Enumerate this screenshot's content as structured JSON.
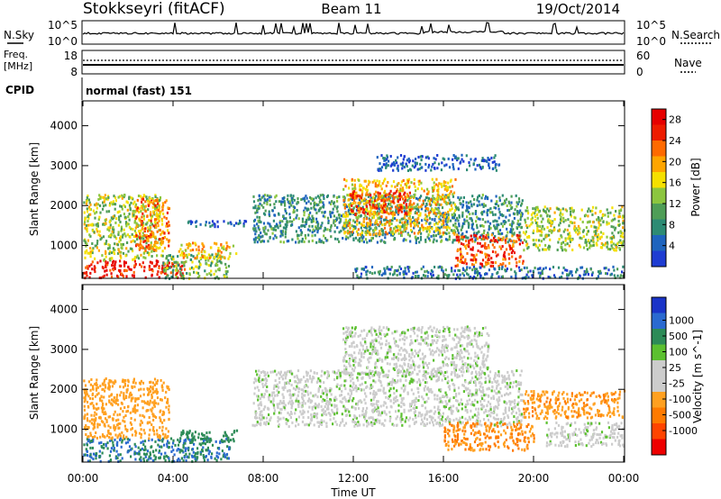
{
  "header": {
    "station": "Stokkseyri (fitACF)",
    "beam": "Beam 11",
    "date": "19/Oct/2014"
  },
  "top_panel": {
    "left_label": "N.Sky",
    "left_ticks": [
      "10^5",
      "10^0"
    ],
    "right_label": "N.Search",
    "right_ticks": [
      "10^5",
      "10^0"
    ]
  },
  "freq_panel": {
    "left_label_1": "Freq.",
    "left_label_2": "[MHz]",
    "left_ticks": [
      "18",
      "8"
    ],
    "right_label": "Nave",
    "right_ticks": [
      "60",
      "0"
    ]
  },
  "cpid_panel": {
    "label": "CPID",
    "mode": "normal (fast) 151"
  },
  "colors": {
    "power_scale": [
      "#1e3cd2",
      "#1e64be",
      "#2d8b74",
      "#4f9e57",
      "#8cc63f",
      "#f5e000",
      "#ffa500",
      "#ff6a00",
      "#ee1c00",
      "#e60000"
    ],
    "velocity_scale": [
      "#1a34c8",
      "#2a6ad0",
      "#2d8b57",
      "#5cc030",
      "#cccccc",
      "#cccccc",
      "#ffa020",
      "#ff7a00",
      "#ff4400",
      "#ee0000"
    ]
  },
  "chart_data": [
    {
      "type": "heatmap",
      "title": "",
      "xlabel": "",
      "ylabel": "Slant Range [km]",
      "x_ticks": [
        "00:00",
        "04:00",
        "08:00",
        "12:00",
        "16:00",
        "20:00",
        "00:00"
      ],
      "y_ticks": [
        "1000",
        "2000",
        "3000",
        "4000"
      ],
      "xlim": [
        0,
        24
      ],
      "ylim": [
        200,
        4600
      ],
      "colorbar": {
        "label": "Power [dB]",
        "ticks": [
          "4",
          "8",
          "12",
          "16",
          "20",
          "24",
          "28"
        ],
        "range": [
          0,
          30
        ]
      },
      "approx_regions": [
        {
          "t0": 0.0,
          "t1": 4.5,
          "r0": 220,
          "r1": 650,
          "level": 27
        },
        {
          "t0": 0.0,
          "t1": 3.5,
          "r0": 650,
          "r1": 2300,
          "level": 14
        },
        {
          "t0": 2.3,
          "t1": 3.8,
          "r0": 900,
          "r1": 2200,
          "level": 22
        },
        {
          "t0": 3.5,
          "t1": 6.5,
          "r0": 200,
          "r1": 800,
          "level": 12
        },
        {
          "t0": 4.2,
          "t1": 6.8,
          "r0": 700,
          "r1": 1100,
          "level": 18
        },
        {
          "t0": 4.5,
          "t1": 7.3,
          "r0": 1500,
          "r1": 1650,
          "level": 4
        },
        {
          "t0": 7.5,
          "t1": 19.5,
          "r0": 1100,
          "r1": 2300,
          "level": 8
        },
        {
          "t0": 11.5,
          "t1": 16.5,
          "r0": 1300,
          "r1": 2700,
          "level": 18
        },
        {
          "t0": 11.8,
          "t1": 14.5,
          "r0": 1800,
          "r1": 2400,
          "level": 24
        },
        {
          "t0": 16.5,
          "t1": 19.5,
          "r0": 500,
          "r1": 1300,
          "level": 24
        },
        {
          "t0": 12.0,
          "t1": 24.0,
          "r0": 200,
          "r1": 500,
          "level": 6
        },
        {
          "t0": 19.5,
          "t1": 24.0,
          "r0": 900,
          "r1": 2000,
          "level": 14
        },
        {
          "t0": 13.0,
          "t1": 18.5,
          "r0": 2900,
          "r1": 3300,
          "level": 4
        }
      ]
    },
    {
      "type": "heatmap",
      "title": "",
      "xlabel": "Time UT",
      "ylabel": "Slant Range [km]",
      "x_ticks": [
        "00:00",
        "04:00",
        "08:00",
        "12:00",
        "16:00",
        "20:00",
        "00:00"
      ],
      "y_ticks": [
        "1000",
        "2000",
        "3000",
        "4000"
      ],
      "xlim": [
        0,
        24
      ],
      "ylim": [
        200,
        4600
      ],
      "colorbar": {
        "label": "Velocity [m s^-1]",
        "ticks": [
          "1000",
          "500",
          "100",
          "25",
          "-25",
          "-100",
          "-500",
          "-1000"
        ],
        "range": [
          -1000,
          1000
        ]
      },
      "approx_regions": [
        {
          "t0": 0.0,
          "t1": 6.5,
          "r0": 220,
          "r1": 800,
          "level": 300
        },
        {
          "t0": 0.0,
          "t1": 3.8,
          "r0": 800,
          "r1": 2300,
          "level": -200
        },
        {
          "t0": 4.2,
          "t1": 6.8,
          "r0": 700,
          "r1": 1000,
          "level": 200
        },
        {
          "t0": 7.5,
          "t1": 19.5,
          "r0": 1100,
          "r1": 2500,
          "level": 0
        },
        {
          "t0": 11.5,
          "t1": 18.0,
          "r0": 2400,
          "r1": 3600,
          "level": 0
        },
        {
          "t0": 16.0,
          "t1": 20.0,
          "r0": 500,
          "r1": 1200,
          "level": -300
        },
        {
          "t0": 19.5,
          "t1": 24.0,
          "r0": 1300,
          "r1": 2000,
          "level": -250
        },
        {
          "t0": 20.5,
          "t1": 24.0,
          "r0": 600,
          "r1": 1200,
          "level": 0
        }
      ]
    }
  ]
}
